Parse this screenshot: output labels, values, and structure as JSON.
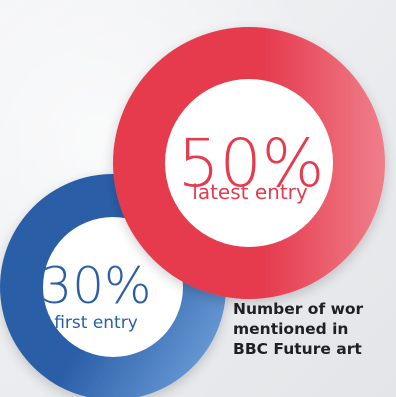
{
  "chart_data": {
    "type": "donut",
    "title_lines": [
      "Number of wor",
      "mentioned in",
      "BBC Future art"
    ],
    "series": [
      {
        "value_label": "50%",
        "value": 50,
        "label": "latest entry",
        "color": "#e63a4e",
        "color_light": "#ef7f8a"
      },
      {
        "value_label": "30%",
        "value": 30,
        "label": "first entry",
        "color": "#2a5ea8",
        "color_light": "#6e9fd8"
      }
    ]
  },
  "colors": {
    "background": "#ecedef",
    "inner_fill": "#ffffff",
    "caption": "#1f1f24"
  }
}
